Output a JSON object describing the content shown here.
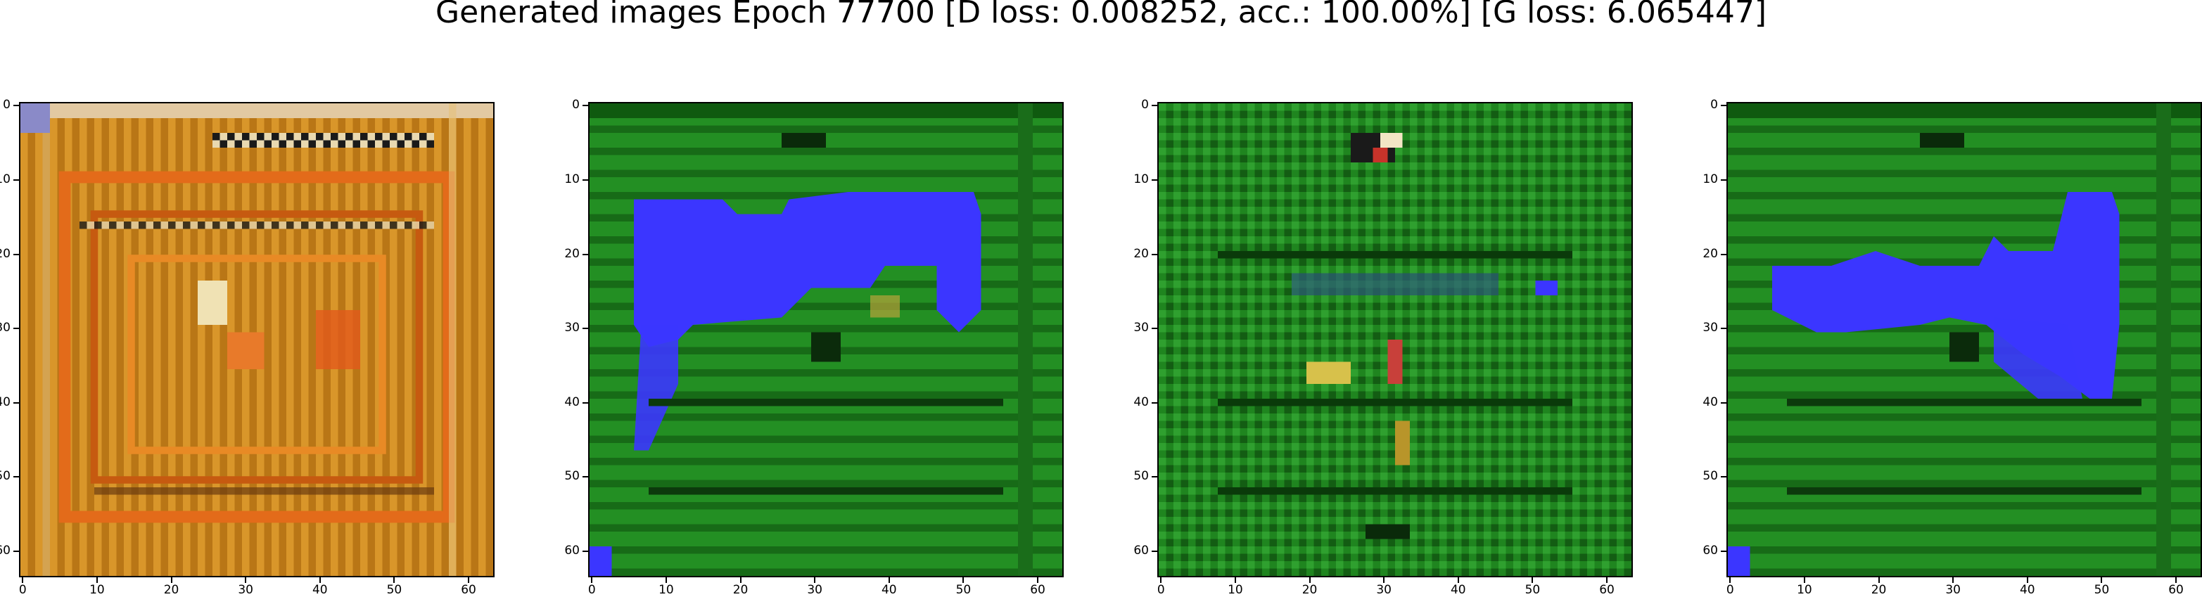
{
  "figure": {
    "title": "Generated images Epoch 77700 [D loss: 0.008252, acc.: 100.00%] [G loss: 6.065447]"
  },
  "axes": {
    "x_ticks": [
      "0",
      "10",
      "20",
      "30",
      "40",
      "50",
      "60"
    ],
    "y_ticks": [
      "0",
      "10",
      "20",
      "30",
      "40",
      "50",
      "60"
    ],
    "image_size": 64
  },
  "panels": [
    {
      "id": "sample-1",
      "palette": "orange",
      "base_color": "#c8831a",
      "accent_color": "#e0661c"
    },
    {
      "id": "sample-2",
      "palette": "green-blue",
      "base_color": "#1f8a1f",
      "accent_color": "#3a3aff"
    },
    {
      "id": "sample-3",
      "palette": "green",
      "base_color": "#1c7d1c",
      "accent_color": "#d9c24a"
    },
    {
      "id": "sample-4",
      "palette": "green-blue",
      "base_color": "#1f8a1f",
      "accent_color": "#3a3aff"
    }
  ]
}
